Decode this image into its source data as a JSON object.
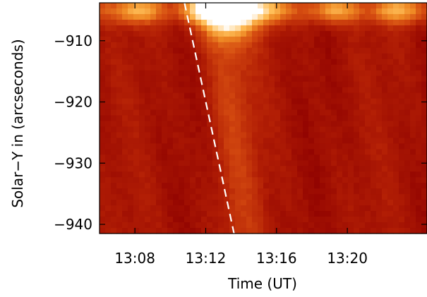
{
  "chart_data": {
    "type": "heatmap",
    "title": "",
    "xlabel": "Time (UT)",
    "ylabel": "Solar−Y in (arcseconds)",
    "xlim_minutes": [
      786.0,
      804.5
    ],
    "ylim_arcsec": [
      -941.5,
      -903.8
    ],
    "x_ticks": [
      {
        "value_minutes": 788,
        "label": "13:08"
      },
      {
        "value_minutes": 792,
        "label": "13:12"
      },
      {
        "value_minutes": 796,
        "label": "13:16"
      },
      {
        "value_minutes": 800,
        "label": "13:20"
      }
    ],
    "y_ticks": [
      {
        "value": -910,
        "label": "−910"
      },
      {
        "value": -920,
        "label": "−920"
      },
      {
        "value": -930,
        "label": "−930"
      },
      {
        "value": -940,
        "label": "−940"
      }
    ],
    "colormap": [
      "#8e0000",
      "#b31f05",
      "#d44a10",
      "#ef8a25",
      "#ffc05a",
      "#ffffff"
    ],
    "colorbar": {
      "present": false
    },
    "features": [
      {
        "name": "bright-base",
        "type": "intensity-peak",
        "center_time_minutes": 793.3,
        "center_y": -904.5,
        "peak_intensity": 1.0
      },
      {
        "name": "top-band",
        "type": "horizontal-band",
        "y": -905.0,
        "intensity": 0.6
      },
      {
        "name": "jet-ridge",
        "type": "diagonal-ridge",
        "start": {
          "time_minutes": 793.0,
          "y": -905.5
        },
        "end": {
          "time_minutes": 794.0,
          "y": -940.0
        },
        "intensity": 0.25
      }
    ],
    "overlay_line": {
      "style": "dashed",
      "color": "#ffffff",
      "start": {
        "time_minutes": 790.8,
        "y": -903.8
      },
      "end": {
        "time_minutes": 793.6,
        "y": -941.5
      }
    }
  }
}
